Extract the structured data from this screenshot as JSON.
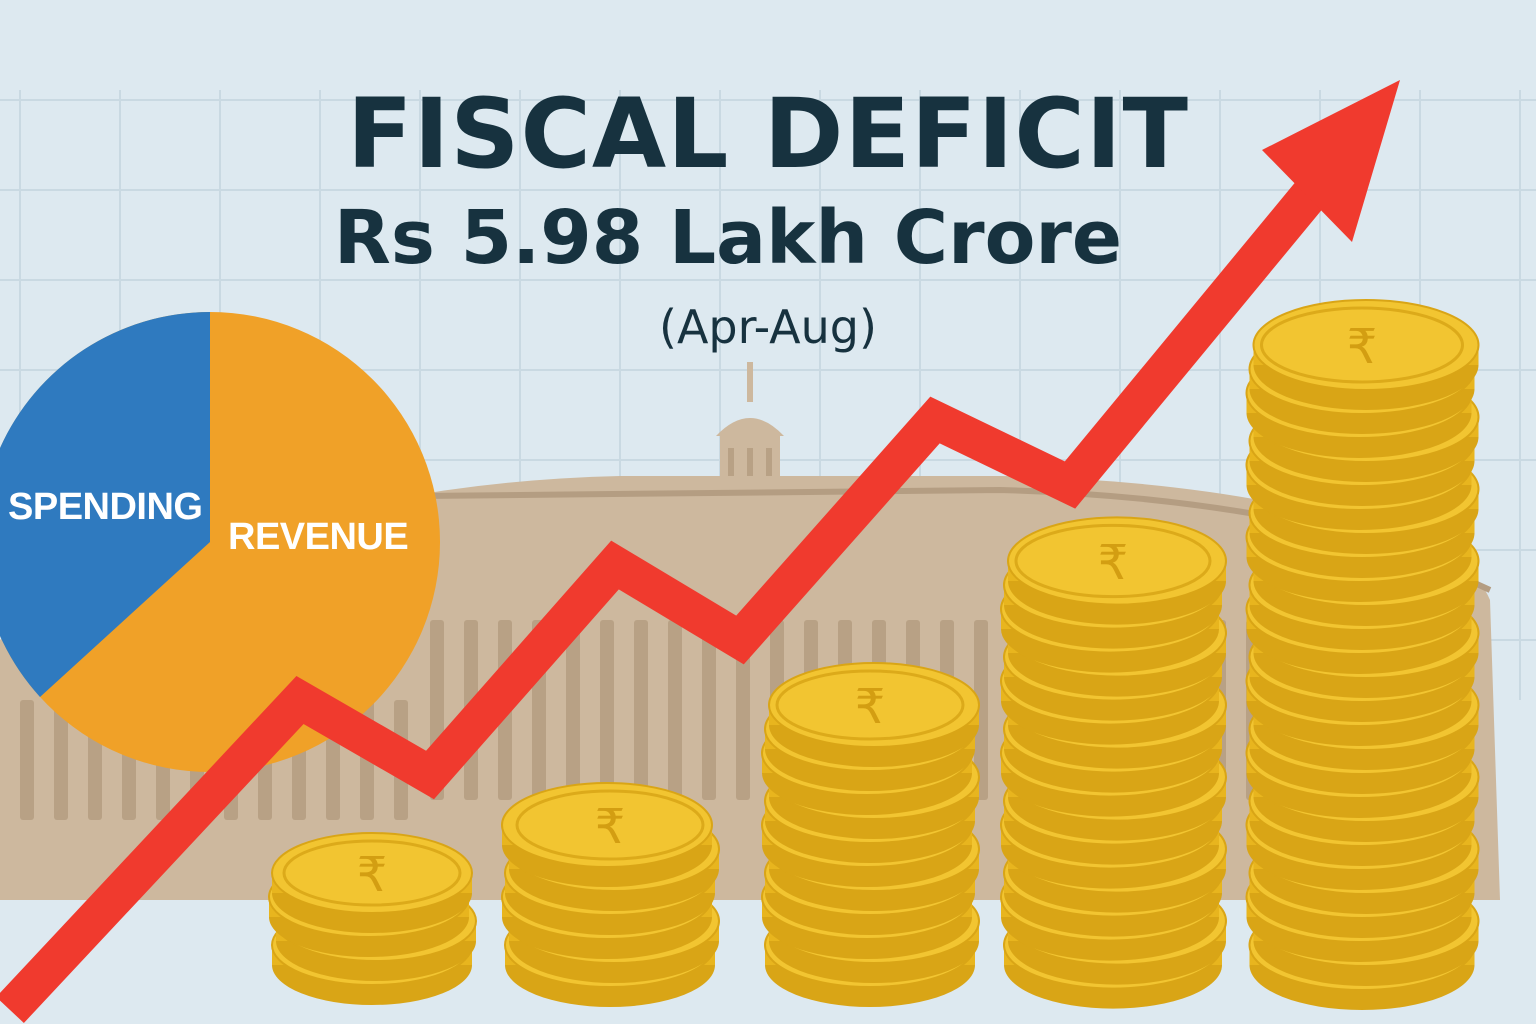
{
  "title": "FISCAL DEFICIT",
  "amount": "Rs 5.98 Lakh Crore",
  "period": "(Apr-Aug)",
  "pie": {
    "segments": [
      {
        "label": "SPENDING",
        "color": "#2f7abf"
      },
      {
        "label": "REVENUE",
        "color": "#f0a128"
      }
    ]
  },
  "coin_symbol": "₹",
  "colors": {
    "background": "#dde9f0",
    "arrow": "#f03a2e",
    "coin": "#f2c531",
    "building": "#c8b49b",
    "text": "#17323f"
  },
  "icons": [
    "rising-arrow-icon",
    "rupee-coin-icon",
    "parliament-building-icon",
    "pie-chart-icon"
  ]
}
